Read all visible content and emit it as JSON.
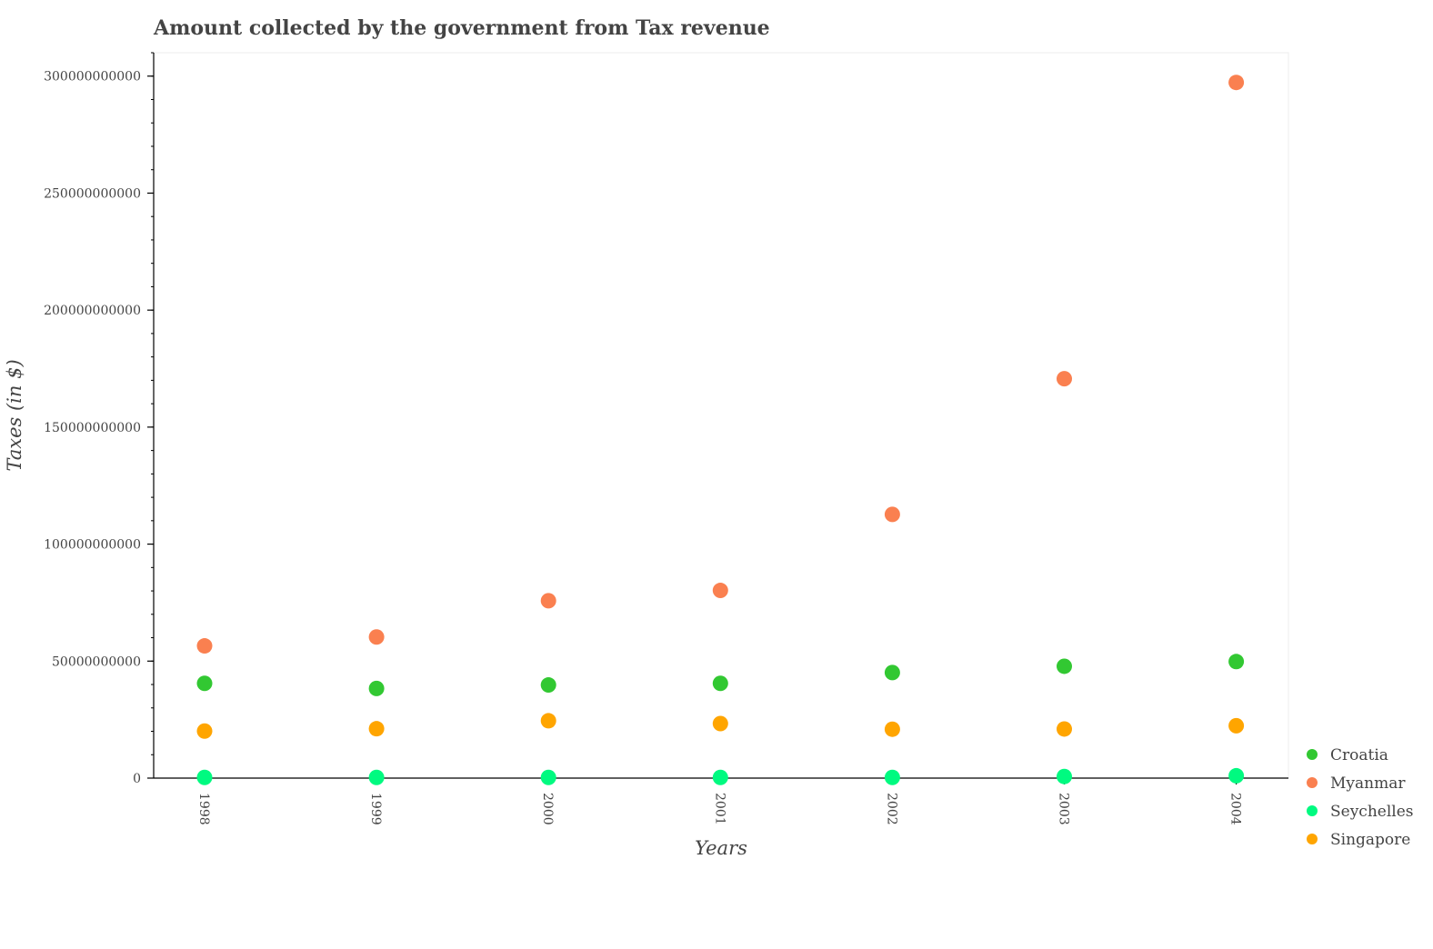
{
  "chart_data": {
    "type": "scatter",
    "title": "Amount collected by the government from Tax revenue",
    "xlabel": "Years",
    "ylabel": "Taxes (in $)",
    "categories": [
      "1998",
      "1999",
      "2000",
      "2001",
      "2002",
      "2003",
      "2004"
    ],
    "ylim": [
      0,
      310000000000
    ],
    "yticks": [
      0,
      50000000000,
      100000000000,
      150000000000,
      200000000000,
      250000000000,
      300000000000
    ],
    "ytick_labels": [
      "0",
      "50000000000",
      "100000000000",
      "150000000000",
      "200000000000",
      "250000000000",
      "300000000000"
    ],
    "grid": false,
    "legend_position": "right",
    "series": [
      {
        "name": "Croatia",
        "color": "#32c832",
        "values": [
          40500000000,
          38300000000,
          39800000000,
          40500000000,
          45100000000,
          47800000000,
          49800000000
        ]
      },
      {
        "name": "Myanmar",
        "color": "#fa8050",
        "values": [
          56500000000,
          60300000000,
          75800000000,
          80200000000,
          112700000000,
          170700000000,
          297300000000
        ]
      },
      {
        "name": "Seychelles",
        "color": "#00fa80",
        "values": [
          300000000,
          300000000,
          300000000,
          300000000,
          300000000,
          700000000,
          1000000000
        ]
      },
      {
        "name": "Singapore",
        "color": "#ffa500",
        "values": [
          20100000000,
          21100000000,
          24500000000,
          23300000000,
          20900000000,
          21000000000,
          22400000000
        ]
      }
    ]
  }
}
